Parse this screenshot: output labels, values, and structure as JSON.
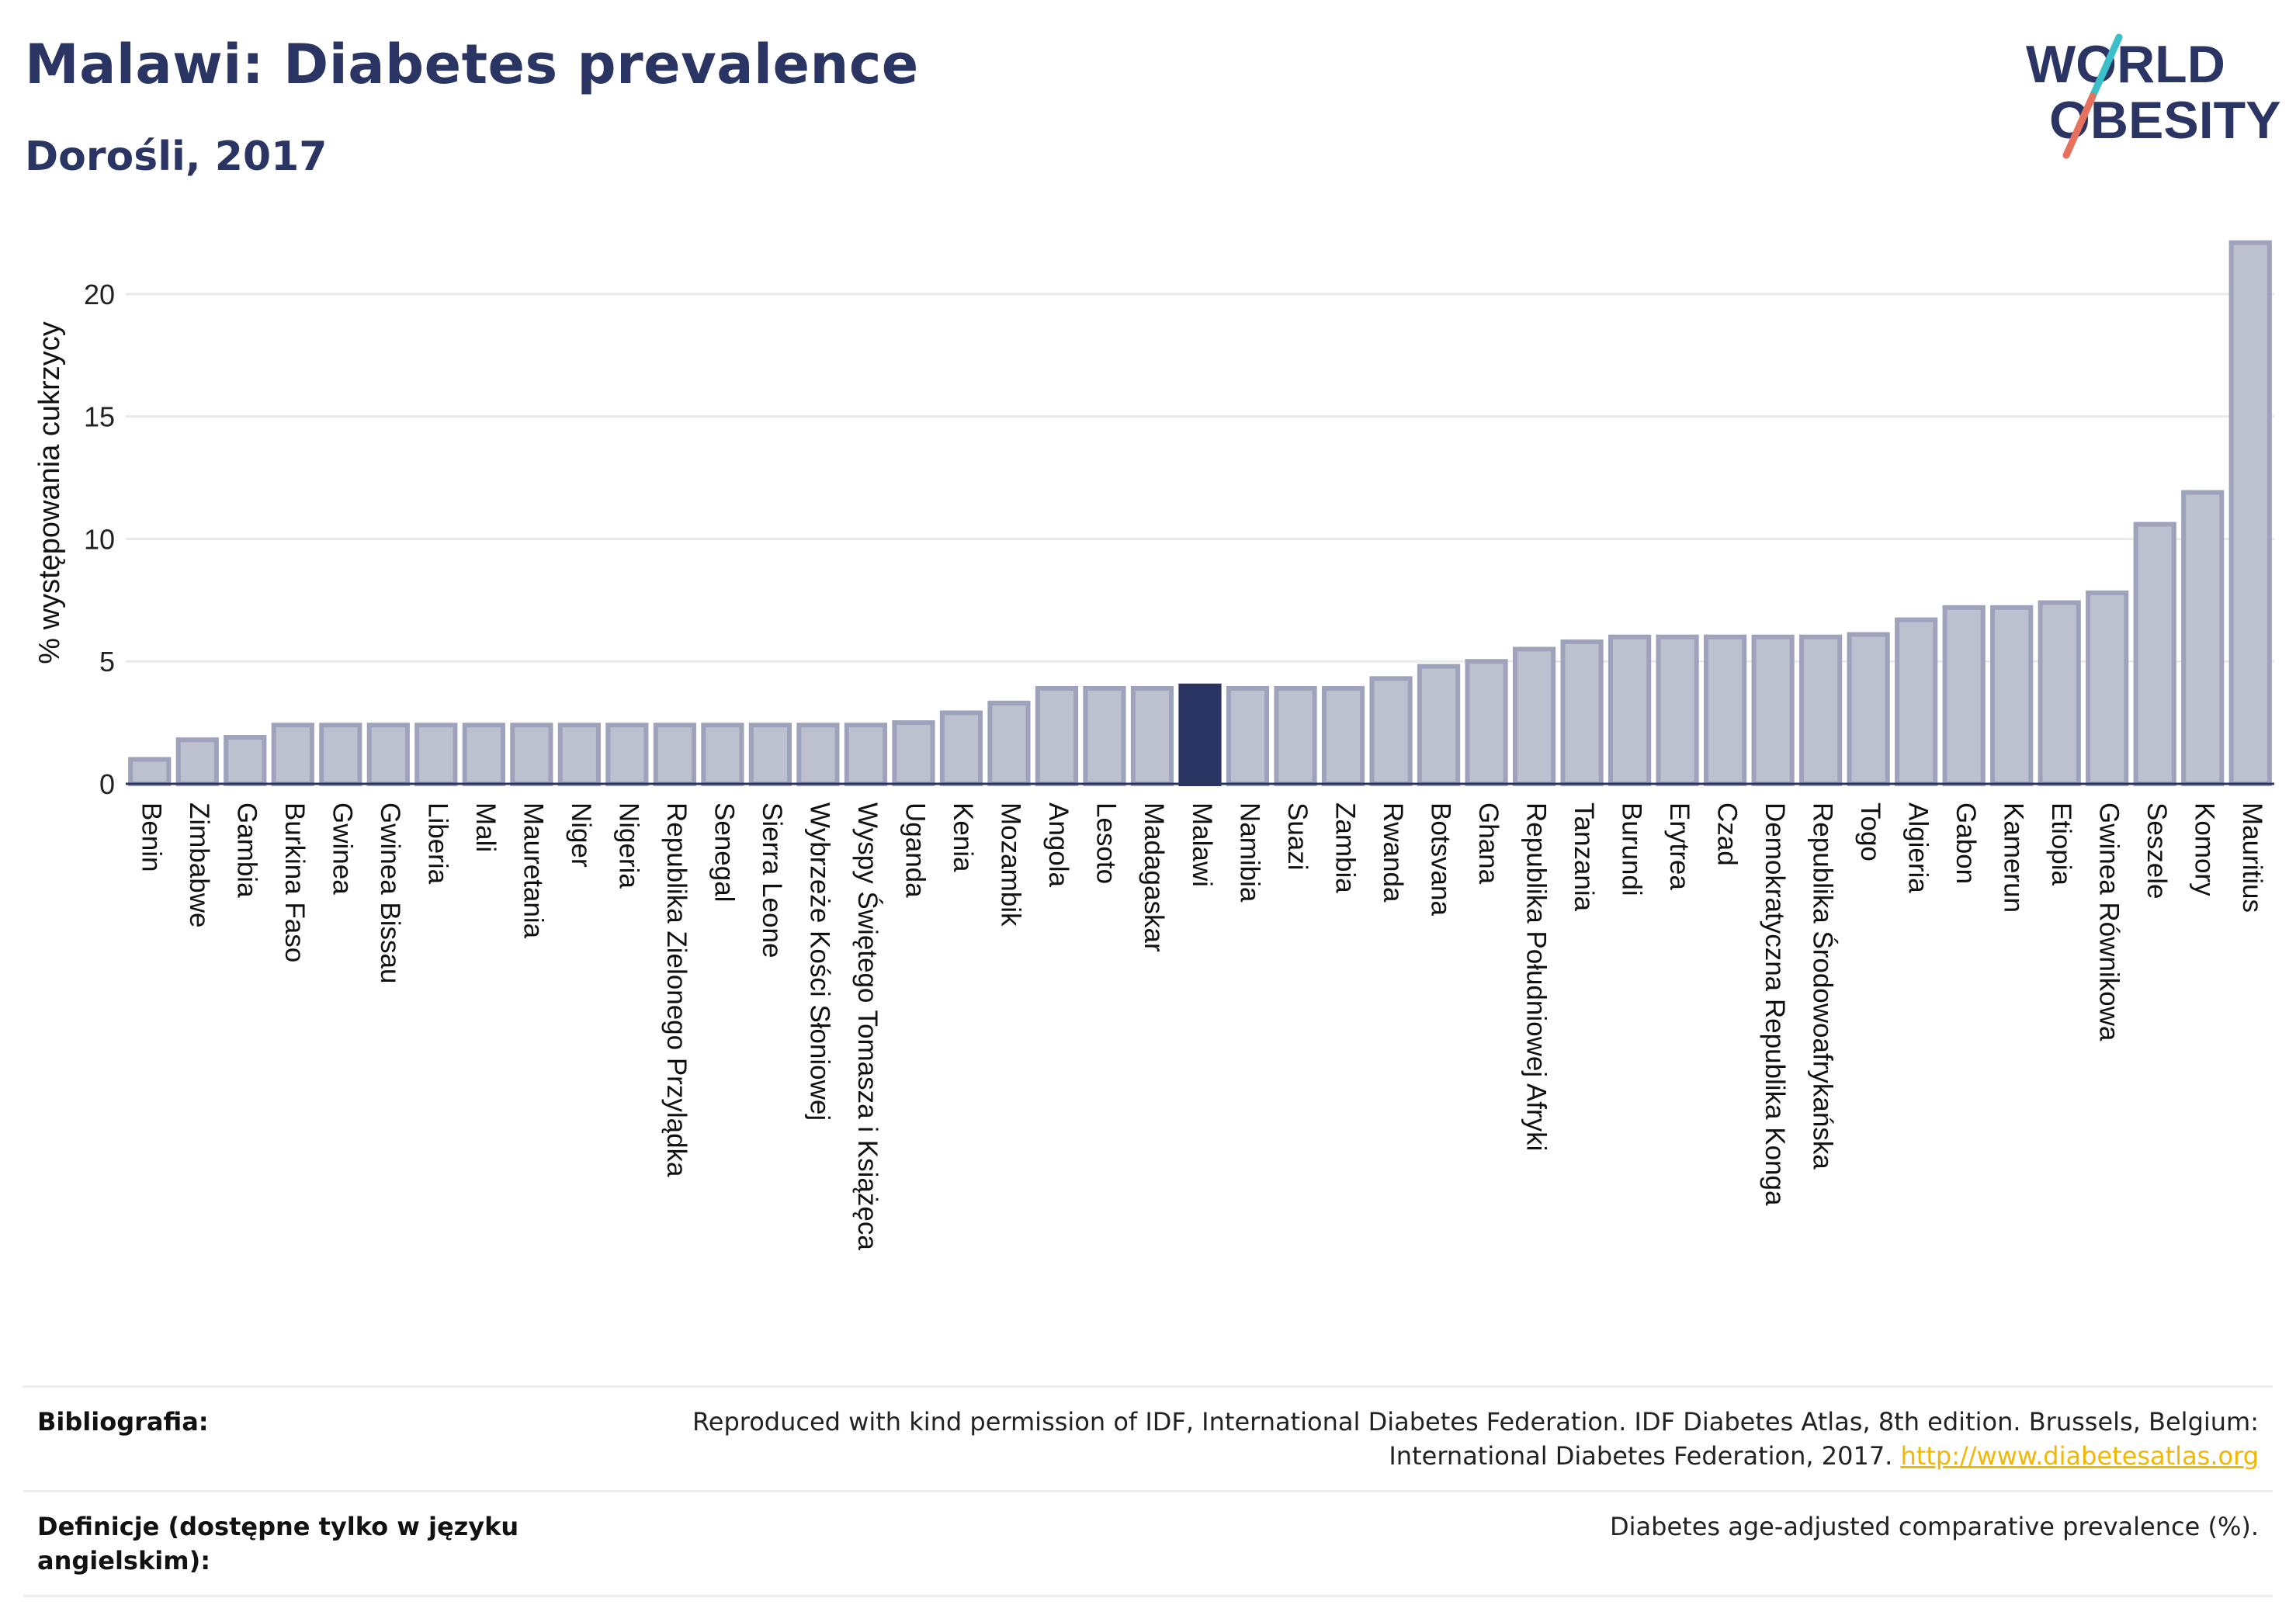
{
  "header": {
    "title": "Malawi: Diabetes prevalence",
    "subtitle": "Dorośli, 2017"
  },
  "logo": {
    "line1": "WORLD",
    "line2": "OBESITY"
  },
  "colors": {
    "bar": "#bcc0cf",
    "bar_border": "#9ea3bb",
    "highlight": "#2b3563",
    "title": "#2b3563",
    "link": "#f2b705",
    "logo_slash_teal": "#3bbfc9",
    "logo_slash_coral": "#e8705f"
  },
  "chart_data": {
    "type": "bar",
    "ylabel": "% występowania cukrzycy",
    "ylim": [
      0,
      22.5
    ],
    "yticks": [
      0,
      5,
      10,
      15,
      20
    ],
    "grid": true,
    "highlight": "Malawi",
    "categories": [
      "Benin",
      "Zimbabwe",
      "Gambia",
      "Burkina Faso",
      "Gwinea",
      "Gwinea Bissau",
      "Liberia",
      "Mali",
      "Mauretania",
      "Niger",
      "Nigeria",
      "Republika Zielonego Przylądka",
      "Senegal",
      "Sierra Leone",
      "Wybrzeże Kości Słoniowej",
      "Wyspy Świętego Tomasza i Książęca",
      "Uganda",
      "Kenia",
      "Mozambik",
      "Angola",
      "Lesoto",
      "Madagaskar",
      "Malawi",
      "Namibia",
      "Suazi",
      "Zambia",
      "Rwanda",
      "Botsvana",
      "Ghana",
      "Republika Południowej Afryki",
      "Tanzania",
      "Burundi",
      "Erytrea",
      "Czad",
      "Demokratyczna Republika Konga",
      "Republika Środowoafrykańska",
      "Togo",
      "Algieria",
      "Gabon",
      "Kamerun",
      "Etiopia",
      "Gwinea Równikowa",
      "Seszele",
      "Komory",
      "Mauritius"
    ],
    "values": [
      1.0,
      1.8,
      1.9,
      2.4,
      2.4,
      2.4,
      2.4,
      2.4,
      2.4,
      2.4,
      2.4,
      2.4,
      2.4,
      2.4,
      2.4,
      2.4,
      2.5,
      2.9,
      3.3,
      3.9,
      3.9,
      3.9,
      4.0,
      3.9,
      3.9,
      3.9,
      4.3,
      4.8,
      5.0,
      5.5,
      5.8,
      6.0,
      6.0,
      6.0,
      6.0,
      6.0,
      6.1,
      6.7,
      7.2,
      7.2,
      7.4,
      7.8,
      10.6,
      11.9,
      22.1
    ]
  },
  "footer": {
    "bibliography_label": "Bibliografia:",
    "bibliography_text": "Reproduced with kind permission of IDF, International Diabetes Federation. IDF Diabetes Atlas, 8th edition. Brussels, Belgium: International Diabetes Federation, 2017.",
    "bibliography_link": "http://www.diabetesatlas.org",
    "definitions_label": "Definicje (dostępne tylko w języku angielskim):",
    "definitions_text": "Diabetes age-adjusted comparative prevalence (%)."
  }
}
